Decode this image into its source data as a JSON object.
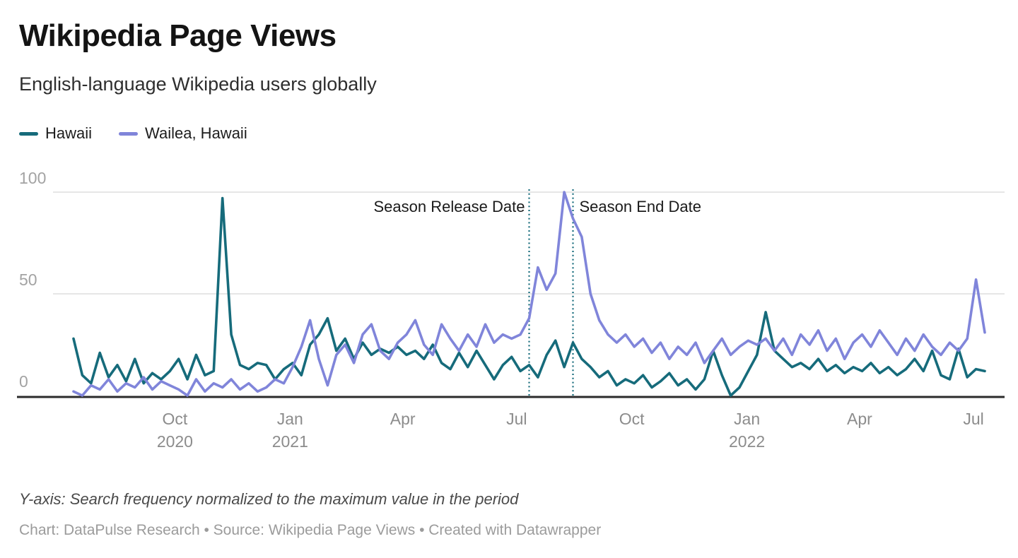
{
  "header": {
    "title": "Wikipedia Page Views",
    "subtitle": "English-language Wikipedia users globally"
  },
  "footer": {
    "note": "Y-axis: Search frequency normalized to the maximum value in the period",
    "credits": "Chart: DataPulse Research • Source: Wikipedia Page Views • Created with Datawrapper"
  },
  "colors": {
    "hawaii": "#166b7b",
    "wailea": "#8085da",
    "grid": "#dedede",
    "baseline": "#2b2b2b",
    "y_tick_label": "#a3a3a3",
    "x_tick_label": "#8c8c8c",
    "annotation_line": "#166b7b"
  },
  "chart_data": {
    "type": "line",
    "title": "Wikipedia Page Views",
    "xlabel": "",
    "ylabel": "Search frequency normalized to the maximum value in the period",
    "x_start_date": "2020-07-12",
    "x_cadence": "weekly",
    "n_points": 105,
    "ylim": [
      0,
      100
    ],
    "grid": "horizontal",
    "legend_position": "top-left",
    "y_ticks": [
      {
        "value": 0,
        "label": "0"
      },
      {
        "value": 50,
        "label": "50"
      },
      {
        "value": 100,
        "label": "100"
      }
    ],
    "x_ticks": [
      {
        "date": "2020-10-01",
        "label": "Oct",
        "year": "2020"
      },
      {
        "date": "2021-01-01",
        "label": "Jan",
        "year": "2021"
      },
      {
        "date": "2021-04-01",
        "label": "Apr",
        "year": ""
      },
      {
        "date": "2021-07-01",
        "label": "Jul",
        "year": ""
      },
      {
        "date": "2021-10-01",
        "label": "Oct",
        "year": ""
      },
      {
        "date": "2022-01-01",
        "label": "Jan",
        "year": "2022"
      },
      {
        "date": "2022-04-01",
        "label": "Apr",
        "year": ""
      },
      {
        "date": "2022-07-01",
        "label": "Jul",
        "year": ""
      }
    ],
    "annotations": [
      {
        "label": "Season Release Date",
        "date": "2021-07-11",
        "label_side": "before",
        "style": "dotted-vertical-line"
      },
      {
        "label": "Season End Date",
        "date": "2021-08-15",
        "label_side": "after",
        "style": "dotted-vertical-line"
      }
    ],
    "series": [
      {
        "name": "Hawaii",
        "color": "#166b7b",
        "values": [
          28,
          10,
          6,
          21,
          9,
          15,
          7,
          18,
          6,
          11,
          8,
          12,
          18,
          8,
          20,
          10,
          12,
          97,
          30,
          15,
          13,
          16,
          15,
          8,
          13,
          16,
          10,
          25,
          30,
          38,
          22,
          28,
          18,
          26,
          20,
          23,
          21,
          24,
          20,
          22,
          18,
          25,
          16,
          13,
          21,
          14,
          22,
          15,
          8,
          15,
          19,
          12,
          15,
          9,
          20,
          27,
          14,
          26,
          18,
          14,
          9,
          12,
          5,
          8,
          6,
          10,
          4,
          7,
          11,
          5,
          8,
          3,
          8,
          22,
          10,
          0,
          4,
          12,
          20,
          41,
          22,
          18,
          14,
          16,
          13,
          18,
          12,
          15,
          11,
          14,
          12,
          16,
          11,
          14,
          10,
          13,
          18,
          12,
          22,
          10,
          8,
          23,
          9,
          13,
          12
        ]
      },
      {
        "name": "Wailea, Hawaii",
        "color": "#8085da",
        "values": [
          2,
          0,
          5,
          3,
          8,
          2,
          6,
          4,
          9,
          3,
          7,
          5,
          3,
          0,
          8,
          2,
          6,
          4,
          8,
          3,
          6,
          2,
          4,
          8,
          6,
          14,
          24,
          37,
          18,
          5,
          20,
          25,
          16,
          30,
          35,
          22,
          18,
          26,
          30,
          37,
          25,
          20,
          35,
          28,
          22,
          30,
          24,
          35,
          26,
          30,
          28,
          30,
          38,
          63,
          52,
          60,
          100,
          87,
          78,
          50,
          37,
          30,
          26,
          30,
          24,
          28,
          21,
          26,
          18,
          24,
          20,
          26,
          16,
          22,
          28,
          20,
          24,
          27,
          25,
          28,
          22,
          28,
          20,
          30,
          25,
          32,
          22,
          28,
          18,
          26,
          30,
          24,
          32,
          26,
          20,
          28,
          22,
          30,
          24,
          20,
          26,
          22,
          28,
          57,
          31
        ]
      }
    ]
  }
}
